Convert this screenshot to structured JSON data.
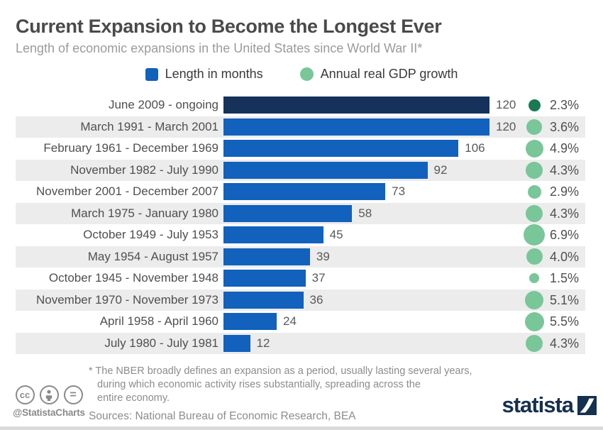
{
  "header": {
    "title": "Current Expansion to Become the Longest Ever",
    "subtitle": "Length of economic expansions in the United States since World War II*"
  },
  "legend": {
    "months_label": "Length in months",
    "gdp_label": "Annual real GDP growth"
  },
  "chart_data": {
    "type": "bar",
    "orientation": "horizontal",
    "value_axis_max": 120,
    "grid": false,
    "categories": [
      "June 2009 - ongoing",
      "March 1991 - March 2001",
      "February 1961 - December 1969",
      "November 1982 - July 1990",
      "November 2001 - December 2007",
      "March 1975 - January 1980",
      "October 1949 - July 1953",
      "May 1954 - August 1957",
      "October 1945 - November 1948",
      "November 1970 - November 1973",
      "April 1958 - April 1960",
      "July 1980 - July 1981"
    ],
    "series": [
      {
        "name": "Length in months",
        "values": [
          120,
          120,
          106,
          92,
          73,
          58,
          45,
          39,
          37,
          36,
          24,
          12
        ]
      },
      {
        "name": "Annual real GDP growth (%)",
        "values": [
          2.3,
          3.6,
          4.9,
          4.3,
          2.9,
          4.3,
          6.9,
          4.0,
          1.5,
          5.1,
          5.5,
          4.3
        ]
      }
    ],
    "rows": [
      {
        "period": "June 2009 - ongoing",
        "months": 120,
        "gdp": 2.3,
        "gdp_label": "2.3%",
        "highlight": true
      },
      {
        "period": "March 1991 - March 2001",
        "months": 120,
        "gdp": 3.6,
        "gdp_label": "3.6%",
        "highlight": false
      },
      {
        "period": "February 1961 - December 1969",
        "months": 106,
        "gdp": 4.9,
        "gdp_label": "4.9%",
        "highlight": false
      },
      {
        "period": "November 1982 - July 1990",
        "months": 92,
        "gdp": 4.3,
        "gdp_label": "4.3%",
        "highlight": false
      },
      {
        "period": "November 2001 - December 2007",
        "months": 73,
        "gdp": 2.9,
        "gdp_label": "2.9%",
        "highlight": false
      },
      {
        "period": "March 1975 - January 1980",
        "months": 58,
        "gdp": 4.3,
        "gdp_label": "4.3%",
        "highlight": false
      },
      {
        "period": "October 1949 - July 1953",
        "months": 45,
        "gdp": 6.9,
        "gdp_label": "6.9%",
        "highlight": false
      },
      {
        "period": "May 1954 - August 1957",
        "months": 39,
        "gdp": 4.0,
        "gdp_label": "4.0%",
        "highlight": false
      },
      {
        "period": "October 1945 - November 1948",
        "months": 37,
        "gdp": 1.5,
        "gdp_label": "1.5%",
        "highlight": false
      },
      {
        "period": "November 1970 - November 1973",
        "months": 36,
        "gdp": 5.1,
        "gdp_label": "5.1%",
        "highlight": false
      },
      {
        "period": "April 1958 - April 1960",
        "months": 24,
        "gdp": 5.5,
        "gdp_label": "5.5%",
        "highlight": false
      },
      {
        "period": "July 1980 - July 1981",
        "months": 12,
        "gdp": 4.3,
        "gdp_label": "4.3%",
        "highlight": false
      }
    ],
    "colors": {
      "bar_blue": "#1161bd",
      "bar_navy_highlight": "#16325a",
      "circle_green": "#79c698",
      "circle_dark_green_highlight": "#177a53",
      "alt_row_bg": "#ececec"
    }
  },
  "footer": {
    "footnote_lines": [
      "* The NBER broadly defines an expansion as a period, usually lasting several years,",
      "during which economic activity rises substantially, spreading across the",
      "entire economy."
    ],
    "sources": "Sources: National Bureau of Economic Research, BEA",
    "credit_handle": "@StatistaCharts",
    "icons": [
      "cc-icon",
      "attribution-person-icon",
      "equals-icon",
      "statista-slash-icon"
    ],
    "brand_name": "statista",
    "cc_glyph": "cc",
    "equals_glyph": "="
  }
}
